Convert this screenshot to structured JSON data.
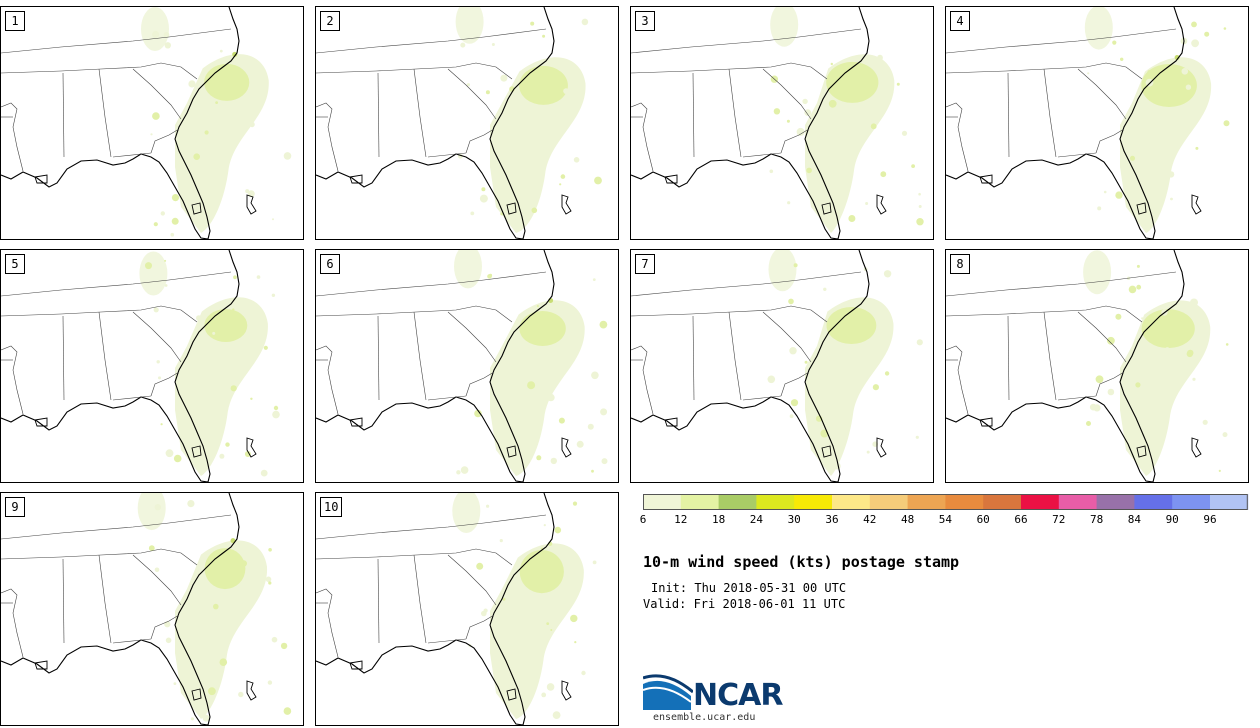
{
  "title": "10-m wind speed (kts) postage stamp",
  "init_text": "Init: Thu 2018-05-31 00 UTC",
  "valid_text": "Valid: Fri 2018-06-01 11 UTC",
  "members": [
    {
      "label": "1"
    },
    {
      "label": "2"
    },
    {
      "label": "3"
    },
    {
      "label": "4"
    },
    {
      "label": "5"
    },
    {
      "label": "6"
    },
    {
      "label": "7"
    },
    {
      "label": "8"
    },
    {
      "label": "9"
    },
    {
      "label": "10"
    }
  ],
  "colorbar": {
    "tick_labels": [
      "6",
      "12",
      "18",
      "24",
      "30",
      "36",
      "42",
      "48",
      "54",
      "60",
      "66",
      "72",
      "78",
      "84",
      "90",
      "96"
    ],
    "colors": [
      "#f0f5d7",
      "#e4f3a4",
      "#a9cc66",
      "#dce81f",
      "#f7e906",
      "#fde888",
      "#f5cc7a",
      "#eda553",
      "#e88b3e",
      "#d9763d",
      "#eb1144",
      "#e85da7",
      "#9871a9",
      "#6570e8",
      "#7d93f1",
      "#b1c3f4"
    ]
  },
  "fill_colors": {
    "light": "#eef4d6",
    "medium": "#e2f0a8",
    "dark": "#c8dd74"
  },
  "logo": {
    "word": "NCAR",
    "url": "ensemble.ucar.edu"
  }
}
